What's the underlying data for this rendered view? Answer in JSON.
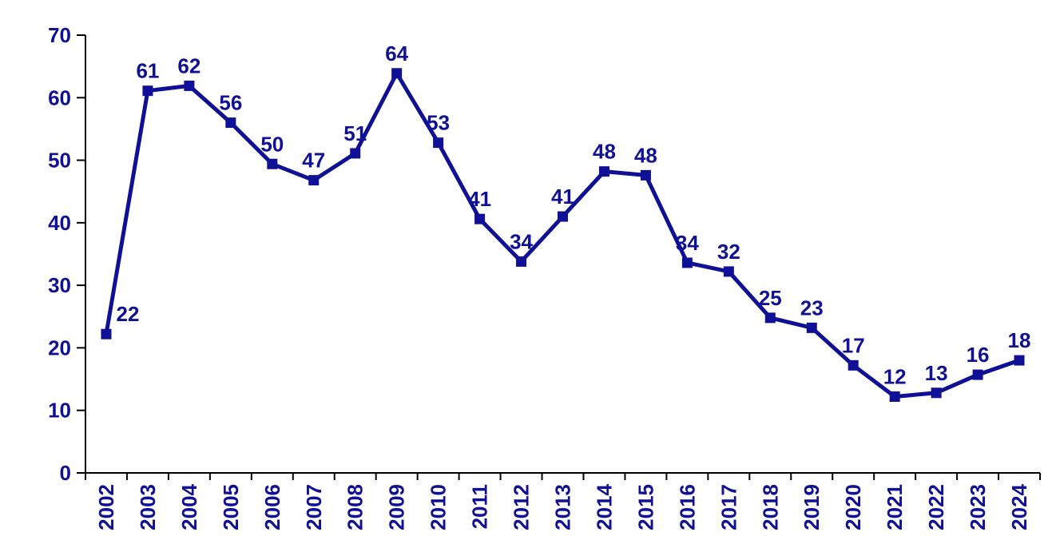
{
  "page": {
    "background": "#ffffff"
  },
  "chart_data": {
    "type": "line",
    "title": "",
    "xlabel": "",
    "ylabel": "",
    "categories": [
      "2002",
      "2003",
      "2004",
      "2005",
      "2006",
      "2007",
      "2008",
      "2009",
      "2010",
      "2011",
      "2012",
      "2013",
      "2014",
      "2015",
      "2016",
      "2017",
      "2018",
      "2019",
      "2020",
      "2021",
      "2022",
      "2023",
      "2024"
    ],
    "values": [
      22,
      61,
      62,
      56,
      50,
      47,
      51,
      64,
      53,
      41,
      34,
      41,
      48,
      48,
      34,
      32,
      25,
      23,
      17,
      12,
      13,
      16,
      18
    ],
    "values_precise": [
      22.2,
      61.1,
      61.9,
      56.0,
      49.4,
      46.8,
      51.1,
      63.9,
      52.8,
      40.6,
      33.8,
      41.0,
      48.2,
      47.6,
      33.6,
      32.2,
      24.8,
      23.2,
      17.2,
      12.2,
      12.8,
      15.7,
      18.0
    ],
    "data_labels_shown": true,
    "ylim": [
      0,
      70
    ],
    "yticks": [
      0,
      10,
      20,
      30,
      40,
      50,
      60,
      70
    ],
    "grid": false,
    "legend": "none",
    "x_tick_label_rotation": -90,
    "series_color": "#101096",
    "label_color": "#101096",
    "axis_label_color": "#101096",
    "axis_line_color": "#000000",
    "marker": "square",
    "label_offsets": {
      "0": {
        "dx": 27,
        "dy": 0
      }
    }
  }
}
